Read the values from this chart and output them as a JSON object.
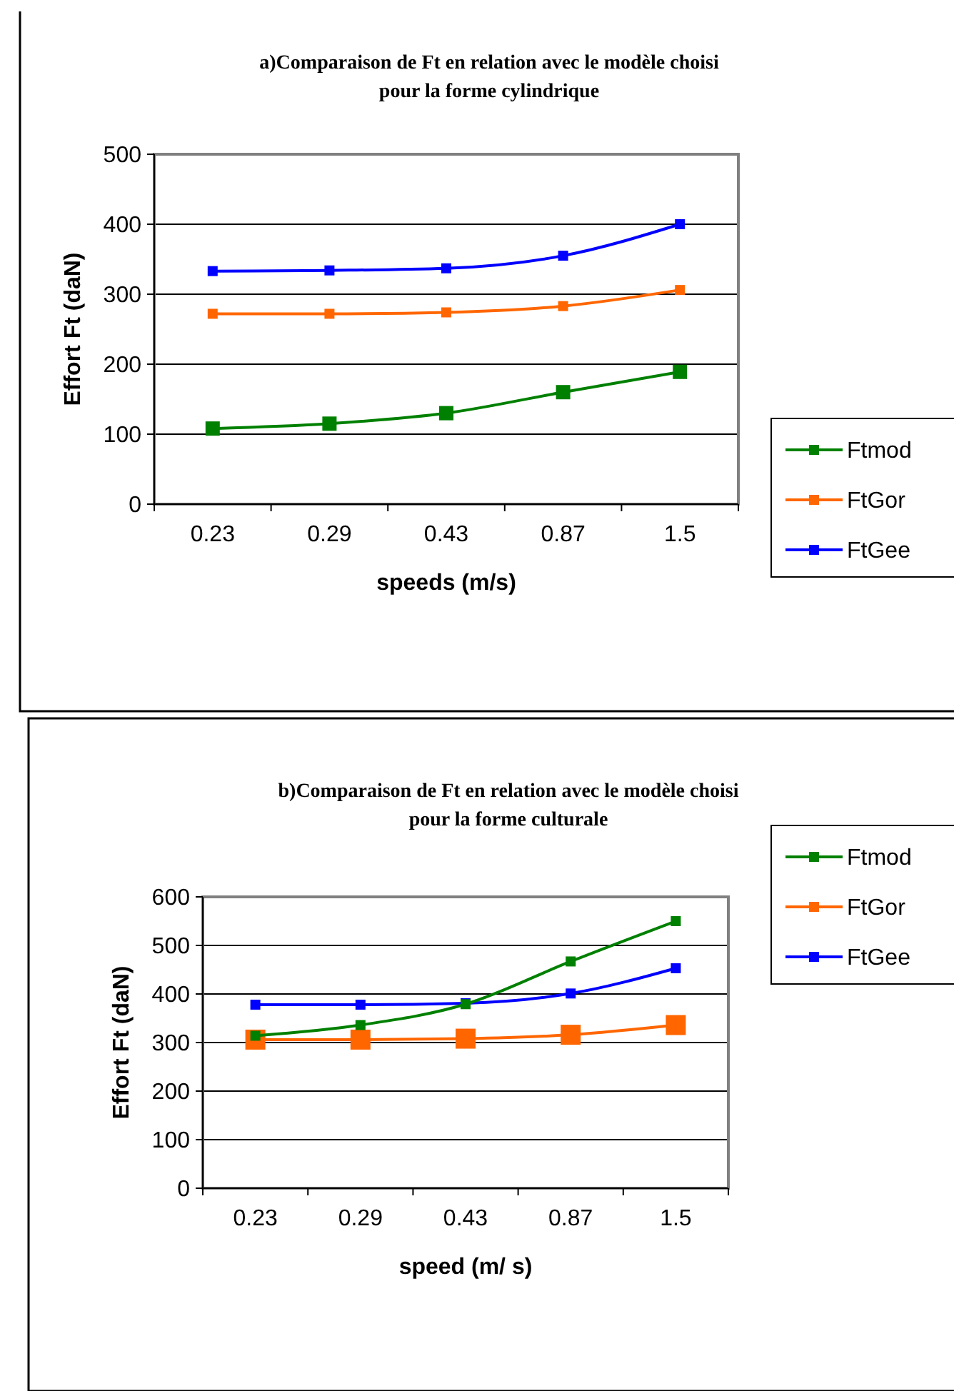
{
  "chart_data": [
    {
      "type": "line",
      "title": "a)Comparaison de Ft en relation avec le modèle choisi\npour la forme cylindrique",
      "xlabel": "speeds (m/s)",
      "ylabel": "Effort Ft (daN)",
      "categories": [
        "0.23",
        "0.29",
        "0.43",
        "0.87",
        "1.5"
      ],
      "ylim": [
        0,
        500
      ],
      "yticks": [
        0,
        100,
        200,
        300,
        400,
        500
      ],
      "grid": "y",
      "legend": "right",
      "series": [
        {
          "name": "Ftmod",
          "color": "#008000",
          "marker": "square",
          "values": [
            108,
            115,
            130,
            160,
            189
          ]
        },
        {
          "name": "FtGor",
          "color": "#ff6600",
          "marker": "square",
          "values": [
            272,
            272,
            274,
            283,
            306
          ]
        },
        {
          "name": "FtGee",
          "color": "#0000ff",
          "marker": "square",
          "values": [
            333,
            334,
            337,
            355,
            400
          ]
        }
      ]
    },
    {
      "type": "line",
      "title": "b)Comparaison de Ft en relation avec le modèle choisi\npour la forme culturale",
      "xlabel": "speed (m/ s)",
      "ylabel": "Effort Ft (daN)",
      "categories": [
        "0.23",
        "0.29",
        "0.43",
        "0.87",
        "1.5"
      ],
      "ylim": [
        0,
        600
      ],
      "yticks": [
        0,
        100,
        200,
        300,
        400,
        500,
        600
      ],
      "grid": "y",
      "legend": "right",
      "series": [
        {
          "name": "Ftmod",
          "color": "#008000",
          "marker": "square",
          "values": [
            314,
            336,
            379,
            467,
            550
          ]
        },
        {
          "name": "FtGor",
          "color": "#ff6600",
          "marker": "square",
          "values": [
            306,
            306,
            308,
            316,
            336
          ]
        },
        {
          "name": "FtGee",
          "color": "#0000ff",
          "marker": "square",
          "values": [
            378,
            378,
            381,
            401,
            453
          ]
        }
      ]
    }
  ]
}
